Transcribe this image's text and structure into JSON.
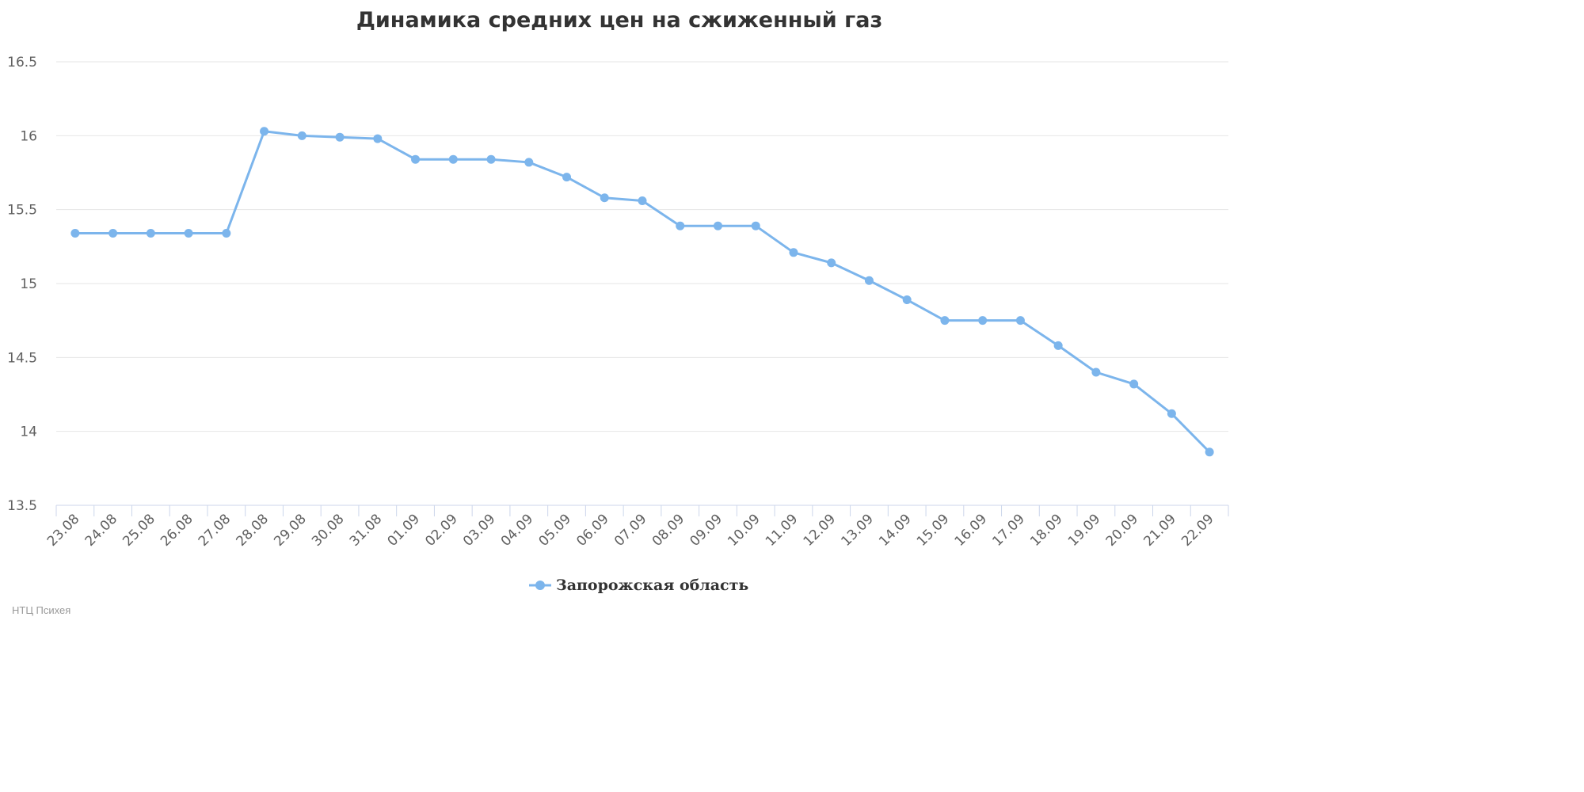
{
  "credit": "НТЦ Психея",
  "chart_data": {
    "type": "line",
    "title": "Динамика средних цен на сжиженный газ",
    "xlabel": "",
    "ylabel": "",
    "ylim": [
      13.5,
      16.5
    ],
    "yticks": [
      13.5,
      14,
      14.5,
      15,
      15.5,
      16,
      16.5
    ],
    "ytick_labels": [
      "13.5",
      "14",
      "14.5",
      "15",
      "15.5",
      "16",
      "16.5"
    ],
    "grid": true,
    "legend_position": "bottom",
    "categories": [
      "23.08",
      "24.08",
      "25.08",
      "26.08",
      "27.08",
      "28.08",
      "29.08",
      "30.08",
      "31.08",
      "01.09",
      "02.09",
      "03.09",
      "04.09",
      "05.09",
      "06.09",
      "07.09",
      "08.09",
      "09.09",
      "10.09",
      "11.09",
      "12.09",
      "13.09",
      "14.09",
      "15.09",
      "16.09",
      "17.09",
      "18.09",
      "19.09",
      "20.09",
      "21.09",
      "22.09"
    ],
    "series": [
      {
        "name": "Запорожская область",
        "color": "#7cb5ec",
        "values": [
          15.34,
          15.34,
          15.34,
          15.34,
          15.34,
          16.03,
          16.0,
          15.99,
          15.98,
          15.84,
          15.84,
          15.84,
          15.82,
          15.72,
          15.58,
          15.56,
          15.39,
          15.39,
          15.39,
          15.21,
          15.14,
          15.02,
          14.89,
          14.75,
          14.75,
          14.75,
          14.58,
          14.4,
          14.32,
          14.12,
          13.86
        ]
      }
    ]
  }
}
